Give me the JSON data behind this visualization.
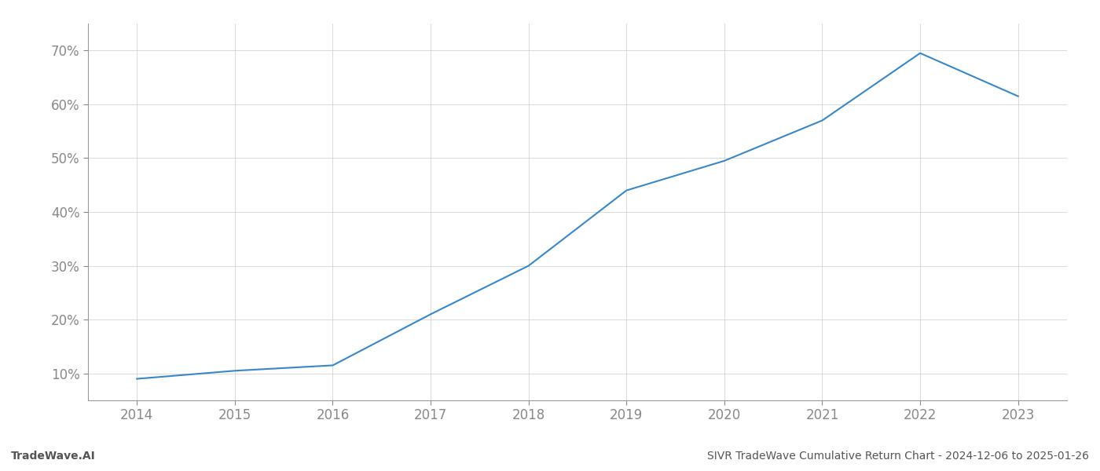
{
  "x_values": [
    2014,
    2015,
    2016,
    2017,
    2018,
    2019,
    2020,
    2021,
    2022,
    2023
  ],
  "y_values": [
    9.0,
    10.5,
    11.5,
    21.0,
    30.0,
    44.0,
    49.5,
    57.0,
    69.5,
    61.5
  ],
  "line_color": "#3a87c8",
  "line_width": 1.5,
  "title": "SIVR TradeWave Cumulative Return Chart - 2024-12-06 to 2025-01-26",
  "title_fontsize": 10,
  "watermark": "TradeWave.AI",
  "watermark_fontsize": 10,
  "watermark_fontweight": "bold",
  "xlim": [
    2013.5,
    2023.5
  ],
  "ylim": [
    5,
    75
  ],
  "yticks": [
    10,
    20,
    30,
    40,
    50,
    60,
    70
  ],
  "xticks": [
    2014,
    2015,
    2016,
    2017,
    2018,
    2019,
    2020,
    2021,
    2022,
    2023
  ],
  "grid_color": "#cccccc",
  "grid_alpha": 1.0,
  "background_color": "#ffffff",
  "tick_fontsize": 12,
  "axes_label_color": "#888888",
  "bottom_text_color": "#555555",
  "spine_color": "#999999"
}
